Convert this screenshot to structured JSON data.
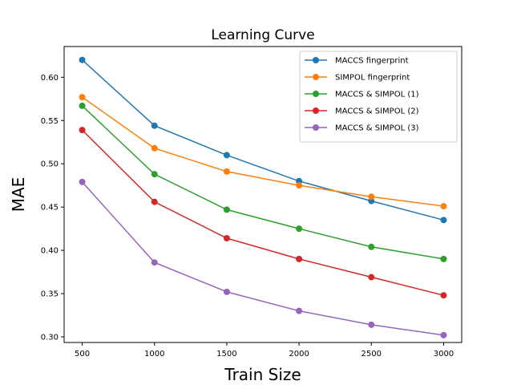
{
  "chart_data": {
    "type": "line",
    "title": "Learning Curve",
    "xlabel": "Train Size",
    "ylabel": "MAE",
    "x": [
      500,
      1000,
      1500,
      2000,
      2500,
      3000
    ],
    "xticks": [
      500,
      1000,
      1500,
      2000,
      2500,
      3000
    ],
    "yticks": [
      0.3,
      0.35,
      0.4,
      0.45,
      0.5,
      0.55,
      0.6
    ],
    "xlim": [
      375,
      3125
    ],
    "ylim": [
      0.2935,
      0.6355
    ],
    "grid": false,
    "legend_position": "top-right",
    "series": [
      {
        "name": "MACCS fingerprint",
        "color": "#1f77b4",
        "values": [
          0.62,
          0.544,
          0.51,
          0.48,
          0.457,
          0.435
        ]
      },
      {
        "name": "SIMPOL fingerprint",
        "color": "#ff7f0e",
        "values": [
          0.577,
          0.518,
          0.491,
          0.475,
          0.462,
          0.451
        ]
      },
      {
        "name": "MACCS & SIMPOL (1)",
        "color": "#2ca02c",
        "values": [
          0.567,
          0.488,
          0.447,
          0.425,
          0.404,
          0.39
        ]
      },
      {
        "name": "MACCS & SIMPOL (2)",
        "color": "#d62728",
        "values": [
          0.539,
          0.456,
          0.414,
          0.39,
          0.369,
          0.348
        ]
      },
      {
        "name": "MACCS & SIMPOL (3)",
        "color": "#9467bd",
        "values": [
          0.479,
          0.386,
          0.352,
          0.33,
          0.314,
          0.302
        ]
      }
    ]
  }
}
